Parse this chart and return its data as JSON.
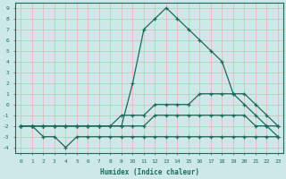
{
  "xlabel": "Humidex (Indice chaleur)",
  "background_color": "#cce8e8",
  "grid_color": "#e8b8b8",
  "line_color": "#1a6b5a",
  "xlim": [
    -0.5,
    23.5
  ],
  "ylim": [
    -4.5,
    9.5
  ],
  "xticks": [
    0,
    1,
    2,
    3,
    4,
    5,
    6,
    7,
    8,
    9,
    10,
    11,
    12,
    13,
    14,
    15,
    16,
    17,
    18,
    19,
    20,
    21,
    22,
    23
  ],
  "yticks": [
    -4,
    -3,
    -2,
    -1,
    0,
    1,
    2,
    3,
    4,
    5,
    6,
    7,
    8,
    9
  ],
  "series": [
    {
      "x": [
        0,
        1,
        2,
        3,
        4,
        5,
        6,
        7,
        9,
        10,
        11,
        12,
        13,
        14,
        15,
        16,
        17,
        18,
        19,
        20,
        21,
        22,
        23
      ],
      "y": [
        -2,
        -2,
        -2,
        -2,
        -2,
        -2,
        -2,
        -2,
        -2,
        2,
        7,
        8,
        9,
        8,
        7,
        6,
        5,
        4,
        1,
        0,
        -1,
        -2,
        -3
      ]
    },
    {
      "x": [
        0,
        1,
        2,
        3,
        4,
        5,
        6,
        7,
        8,
        9,
        10,
        11,
        12,
        13,
        14,
        15,
        16,
        17,
        18,
        19,
        20,
        21,
        22,
        23
      ],
      "y": [
        -2,
        -2,
        -2,
        -2,
        -2,
        -2,
        -2,
        -2,
        -2,
        -1,
        -1,
        -1,
        0,
        0,
        0,
        0,
        1,
        1,
        1,
        1,
        1,
        0,
        -1,
        -2
      ]
    },
    {
      "x": [
        0,
        1,
        2,
        3,
        4,
        5,
        6,
        7,
        8,
        9,
        10,
        11,
        12,
        13,
        14,
        15,
        16,
        17,
        18,
        19,
        20,
        21,
        22,
        23
      ],
      "y": [
        -2,
        -2,
        -2,
        -2,
        -2,
        -2,
        -2,
        -2,
        -2,
        -2,
        -2,
        -2,
        -1,
        -1,
        -1,
        -1,
        -1,
        -1,
        -1,
        -1,
        -1,
        -2,
        -2,
        -2
      ]
    },
    {
      "x": [
        0,
        1,
        2,
        3,
        4,
        5,
        6,
        7,
        8,
        9,
        10,
        11,
        12,
        13,
        14,
        15,
        16,
        17,
        18,
        19,
        20,
        21,
        22,
        23
      ],
      "y": [
        -2,
        -2,
        -3,
        -3,
        -4,
        -3,
        -3,
        -3,
        -3,
        -3,
        -3,
        -3,
        -3,
        -3,
        -3,
        -3,
        -3,
        -3,
        -3,
        -3,
        -3,
        -3,
        -3,
        -3
      ]
    }
  ]
}
